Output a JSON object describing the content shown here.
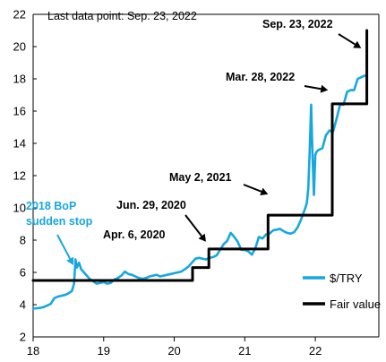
{
  "chart_data": {
    "type": "line",
    "title": "",
    "xlabel": "",
    "ylabel": "",
    "note": "Last data point: Sep. 23, 2022",
    "xlim": [
      2018.0,
      2022.9
    ],
    "ylim": [
      2,
      22
    ],
    "x_ticks": [
      {
        "value": 2018,
        "label": "18"
      },
      {
        "value": 2019,
        "label": "19"
      },
      {
        "value": 2020,
        "label": "20"
      },
      {
        "value": 2021,
        "label": "21"
      },
      {
        "value": 2022,
        "label": "22"
      }
    ],
    "y_ticks": [
      2,
      4,
      6,
      8,
      10,
      12,
      14,
      16,
      18,
      20,
      22
    ],
    "grid": false,
    "legend_position": "bottom-right",
    "series": [
      {
        "name": "$/TRY",
        "color": "#17a7e0",
        "style": "line",
        "x": [
          2018.0,
          2018.05,
          2018.1,
          2018.15,
          2018.2,
          2018.25,
          2018.3,
          2018.35,
          2018.4,
          2018.45,
          2018.5,
          2018.55,
          2018.58,
          2018.6,
          2018.62,
          2018.65,
          2018.68,
          2018.72,
          2018.76,
          2018.8,
          2018.85,
          2018.9,
          2018.95,
          2019.0,
          2019.05,
          2019.1,
          2019.15,
          2019.2,
          2019.25,
          2019.3,
          2019.35,
          2019.4,
          2019.45,
          2019.5,
          2019.55,
          2019.6,
          2019.65,
          2019.7,
          2019.75,
          2019.8,
          2019.85,
          2019.9,
          2019.95,
          2020.0,
          2020.05,
          2020.1,
          2020.15,
          2020.2,
          2020.25,
          2020.3,
          2020.35,
          2020.4,
          2020.45,
          2020.5,
          2020.55,
          2020.6,
          2020.65,
          2020.7,
          2020.75,
          2020.8,
          2020.85,
          2020.9,
          2020.95,
          2021.0,
          2021.05,
          2021.1,
          2021.15,
          2021.2,
          2021.25,
          2021.3,
          2021.35,
          2021.4,
          2021.45,
          2021.5,
          2021.55,
          2021.6,
          2021.65,
          2021.7,
          2021.75,
          2021.8,
          2021.85,
          2021.88,
          2021.9,
          2021.92,
          2021.94,
          2021.96,
          2021.98,
          2022.0,
          2022.02,
          2022.05,
          2022.1,
          2022.15,
          2022.2,
          2022.25,
          2022.3,
          2022.35,
          2022.4,
          2022.45,
          2022.5,
          2022.55,
          2022.6,
          2022.65,
          2022.7,
          2022.73
        ],
        "y": [
          3.75,
          3.78,
          3.8,
          3.85,
          3.95,
          4.05,
          4.4,
          4.5,
          4.55,
          4.6,
          4.7,
          4.85,
          5.3,
          6.8,
          6.3,
          6.6,
          6.2,
          6.0,
          5.8,
          5.6,
          5.45,
          5.3,
          5.35,
          5.4,
          5.3,
          5.35,
          5.55,
          5.65,
          5.8,
          6.05,
          5.9,
          5.85,
          5.75,
          5.65,
          5.6,
          5.65,
          5.75,
          5.8,
          5.85,
          5.75,
          5.8,
          5.85,
          5.9,
          5.95,
          6.0,
          6.05,
          6.2,
          6.35,
          6.6,
          6.85,
          6.9,
          6.85,
          6.8,
          6.9,
          6.95,
          7.05,
          7.4,
          7.75,
          7.95,
          8.45,
          8.2,
          7.9,
          7.4,
          7.4,
          7.3,
          7.1,
          7.5,
          8.2,
          8.1,
          8.35,
          8.4,
          8.6,
          8.65,
          8.7,
          8.55,
          8.45,
          8.4,
          8.5,
          8.8,
          9.3,
          9.9,
          10.3,
          11.2,
          13.5,
          16.4,
          13.2,
          10.8,
          13.3,
          13.5,
          13.6,
          13.7,
          14.5,
          14.8,
          14.7,
          15.5,
          16.4,
          16.4,
          17.2,
          17.3,
          17.3,
          18.0,
          18.1,
          18.2,
          18.2
        ]
      },
      {
        "name": "Fair value",
        "color": "#000000",
        "style": "step",
        "x": [
          2018.0,
          2020.26,
          2020.26,
          2020.49,
          2020.49,
          2021.33,
          2021.33,
          2022.24,
          2022.24,
          2022.73,
          2022.73
        ],
        "y": [
          5.5,
          5.5,
          6.3,
          6.3,
          7.45,
          7.45,
          9.55,
          9.55,
          16.45,
          16.45,
          21.0
        ]
      }
    ],
    "annotations": [
      {
        "text": "Sep. 23, 2022",
        "style": "bold",
        "arrow_to": {
          "x": 2022.65,
          "y": 19.9
        }
      },
      {
        "text": "Mar. 28, 2022",
        "style": "bold",
        "arrow_to": {
          "x": 2022.18,
          "y": 17.3
        }
      },
      {
        "text": "May 2, 2021",
        "style": "bold",
        "arrow_to": {
          "x": 2021.33,
          "y": 10.85
        }
      },
      {
        "text": "Jun. 29, 2020",
        "style": "bold",
        "arrow_to": {
          "x": 2020.45,
          "y": 7.9
        }
      },
      {
        "text": "Apr. 6, 2020",
        "style": "bold",
        "arrow_to": null
      },
      {
        "text": "2018 BoP",
        "style": "bold-blue",
        "arrow_to": null
      },
      {
        "text": "sudden stop",
        "style": "bold-blue",
        "arrow_to": {
          "x": 2018.57,
          "y": 6.45
        }
      }
    ]
  }
}
